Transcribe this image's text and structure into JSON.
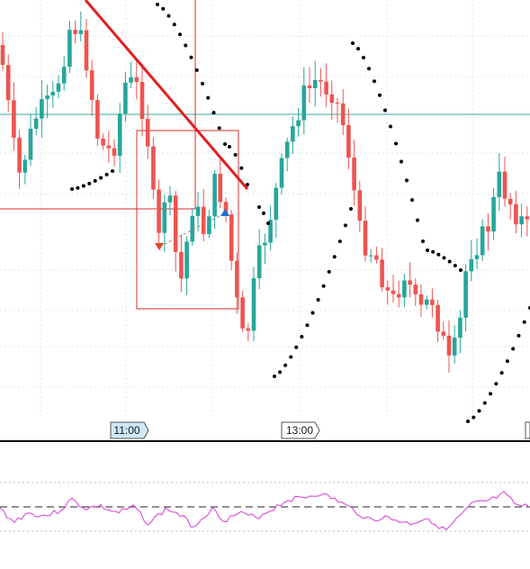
{
  "time_labels": [
    "11:00",
    "13:00"
  ]
}
